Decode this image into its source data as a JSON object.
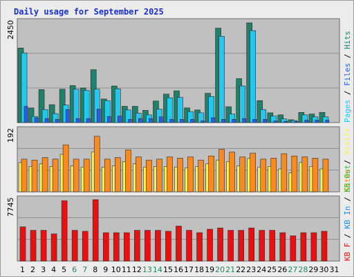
{
  "title": "Daily usage for September 2025",
  "colors": {
    "hits": "#20806a",
    "files": "#23c7f0",
    "pages": "#2a5cf5",
    "visits": "#f8f050",
    "sites": "#f88a20",
    "kbin": "#1c8cf0",
    "kbout": "#38c038",
    "kbf": "#e81010",
    "weekday_label": "#000000",
    "weekend_label": "#1f8a5a"
  },
  "chart_data": [
    {
      "type": "bar",
      "panel": "hits-files-pages",
      "y_max_label": "2450",
      "ylim": [
        0,
        2450
      ],
      "right_labels": [
        "Pages",
        "Files",
        "Hits"
      ],
      "categories": [
        "1",
        "2",
        "3",
        "4",
        "5",
        "6",
        "7",
        "8",
        "9",
        "10",
        "11",
        "12",
        "13",
        "14",
        "15",
        "16",
        "17",
        "18",
        "19",
        "20",
        "21",
        "22",
        "23",
        "24",
        "25",
        "26",
        "27",
        "28",
        "29",
        "30",
        "31"
      ],
      "series": [
        {
          "name": "Hits",
          "values": [
            1830,
            360,
            810,
            440,
            820,
            910,
            850,
            1300,
            580,
            900,
            400,
            400,
            300,
            530,
            700,
            780,
            360,
            310,
            720,
            2320,
            390,
            1080,
            2450,
            540,
            240,
            190,
            70,
            250,
            210,
            250,
            null
          ]
        },
        {
          "name": "Files",
          "values": [
            1710,
            150,
            320,
            220,
            430,
            820,
            790,
            820,
            540,
            830,
            310,
            230,
            190,
            330,
            610,
            620,
            270,
            240,
            640,
            2120,
            210,
            900,
            2260,
            320,
            160,
            90,
            50,
            190,
            140,
            140,
            null
          ]
        },
        {
          "name": "Pages",
          "values": [
            400,
            120,
            100,
            80,
            320,
            100,
            100,
            330,
            150,
            160,
            80,
            100,
            100,
            140,
            80,
            80,
            80,
            40,
            120,
            80,
            80,
            100,
            80,
            80,
            40,
            30,
            30,
            60,
            60,
            60,
            null
          ]
        }
      ]
    },
    {
      "type": "bar",
      "panel": "visits-sites",
      "y_max_label": "192",
      "ylim": [
        0,
        192
      ],
      "right_labels": [
        "Sites",
        "Visits"
      ],
      "series": [
        {
          "name": "Visits",
          "values": [
            92,
            80,
            88,
            80,
            118,
            82,
            78,
            126,
            78,
            82,
            95,
            88,
            78,
            80,
            80,
            78,
            75,
            80,
            88,
            100,
            95,
            82,
            105,
            78,
            80,
            72,
            60,
            92,
            80,
            72,
            null
          ]
        },
        {
          "name": "Sites",
          "values": [
            103,
            100,
            108,
            103,
            148,
            103,
            103,
            175,
            103,
            108,
            132,
            110,
            100,
            103,
            110,
            106,
            110,
            100,
            113,
            134,
            125,
            110,
            122,
            103,
            106,
            120,
            113,
            110,
            106,
            103,
            null
          ]
        }
      ]
    },
    {
      "type": "bar",
      "panel": "kbf-kbin-kbout",
      "y_max_label": "7745",
      "ylim": [
        0,
        7745
      ],
      "right_labels": [
        "KB F",
        "KB In",
        "KB Out"
      ],
      "series": [
        {
          "name": "KB F",
          "values": [
            4350,
            3910,
            3910,
            3460,
            7670,
            3910,
            3790,
            7800,
            3610,
            3610,
            3610,
            3910,
            3910,
            3910,
            3790,
            4450,
            3910,
            3610,
            4050,
            4210,
            3910,
            3910,
            4210,
            3910,
            3910,
            3610,
            3210,
            3610,
            3610,
            3790,
            null
          ]
        }
      ]
    }
  ]
}
